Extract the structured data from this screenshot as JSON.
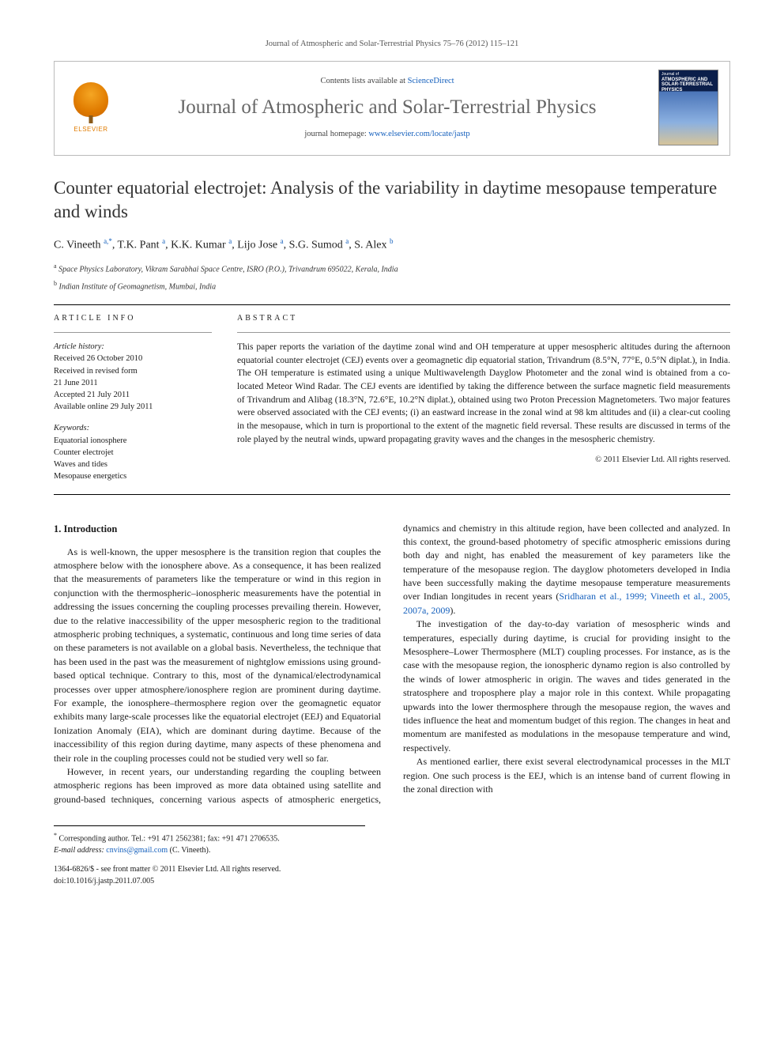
{
  "running_head": "Journal of Atmospheric and Solar-Terrestrial Physics 75–76 (2012) 115–121",
  "masthead": {
    "contents_prefix": "Contents lists available at ",
    "contents_link": "ScienceDirect",
    "journal_name": "Journal of Atmospheric and Solar-Terrestrial Physics",
    "homepage_prefix": "journal homepage: ",
    "homepage_link": "www.elsevier.com/locate/jastp",
    "publisher_word": "ELSEVIER",
    "cover_jrnl": "Journal of",
    "cover_title": "ATMOSPHERIC AND SOLAR-TERRESTRIAL PHYSICS"
  },
  "title": "Counter equatorial electrojet: Analysis of the variability in daytime mesopause temperature and winds",
  "authors_html": "C. Vineeth <span class='sup'>a,</span><span class='sup corr'>*</span>, T.K. Pant <span class='sup'>a</span>, K.K. Kumar <span class='sup'>a</span>, Lijo Jose <span class='sup'>a</span>, S.G. Sumod <span class='sup'>a</span>, S. Alex <span class='sup'>b</span>",
  "affiliations": [
    {
      "sup": "a",
      "text": "Space Physics Laboratory, Vikram Sarabhai Space Centre, ISRO (P.O.), Trivandrum 695022, Kerala, India"
    },
    {
      "sup": "b",
      "text": "Indian Institute of Geomagnetism, Mumbai, India"
    }
  ],
  "article_info": {
    "head": "ARTICLE INFO",
    "history_label": "Article history:",
    "history": [
      "Received 26 October 2010",
      "Received in revised form",
      "21 June 2011",
      "Accepted 21 July 2011",
      "Available online 29 July 2011"
    ],
    "keywords_label": "Keywords:",
    "keywords": [
      "Equatorial ionosphere",
      "Counter electrojet",
      "Waves and tides",
      "Mesopause energetics"
    ]
  },
  "abstract": {
    "head": "ABSTRACT",
    "text": "This paper reports the variation of the daytime zonal wind and OH temperature at upper mesospheric altitudes during the afternoon equatorial counter electrojet (CEJ) events over a geomagnetic dip equatorial station, Trivandrum (8.5°N, 77°E, 0.5°N diplat.), in India. The OH temperature is estimated using a unique Multiwavelength Dayglow Photometer and the zonal wind is obtained from a co-located Meteor Wind Radar. The CEJ events are identified by taking the difference between the surface magnetic field measurements of Trivandrum and Alibag (18.3°N, 72.6°E, 10.2°N diplat.), obtained using two Proton Precession Magnetometers. Two major features were observed associated with the CEJ events; (i) an eastward increase in the zonal wind at 98 km altitudes and (ii) a clear-cut cooling in the mesopause, which in turn is proportional to the extent of the magnetic field reversal. These results are discussed in terms of the role played by the neutral winds, upward propagating gravity waves and the changes in the mesospheric chemistry.",
    "copyright": "© 2011 Elsevier Ltd. All rights reserved."
  },
  "section1": {
    "heading": "1. Introduction",
    "p1": "As is well-known, the upper mesosphere is the transition region that couples the atmosphere below with the ionosphere above. As a consequence, it has been realized that the measurements of parameters like the temperature or wind in this region in conjunction with the thermospheric–ionospheric measurements have the potential in addressing the issues concerning the coupling processes prevailing therein. However, due to the relative inaccessibility of the upper mesospheric region to the traditional atmospheric probing techniques, a systematic, continuous and long time series of data on these parameters is not available on a global basis. Nevertheless, the technique that has been used in the past was the measurement of nightglow emissions using ground-based optical technique. Contrary to this, most of the dynamical/electrodynamical processes over upper atmosphere/ionosphere region are prominent during daytime. For example, the ionosphere–thermosphere region over the geomagnetic equator exhibits many large-scale processes like the equatorial electrojet (EEJ) and Equatorial Ionization Anomaly (EIA), which are dominant during daytime. Because of the inaccessibility of this region during daytime, many aspects of these phenomena and their role in the coupling processes could not be studied very well so far.",
    "p2_pre": "However, in recent years, our understanding regarding the coupling between atmospheric regions has been improved as more data obtained using satellite and ground-based techniques, concerning various aspects of atmospheric energetics, dynamics and chemistry in this altitude region, have been collected and analyzed. In this context, the ground-based photometry of specific atmospheric emissions during both day and night, has enabled the measurement of key parameters like the temperature of the mesopause region. The dayglow photometers developed in India have been successfully making the daytime mesopause temperature measurements over Indian longitudes in recent years (",
    "p2_link": "Sridharan et al., 1999; Vineeth et al., 2005, 2007a, 2009",
    "p2_post": ").",
    "p3": "The investigation of the day-to-day variation of mesospheric winds and temperatures, especially during daytime, is crucial for providing insight to the Mesosphere–Lower Thermosphere (MLT) coupling processes. For instance, as is the case with the mesopause region, the ionospheric dynamo region is also controlled by the winds of lower atmospheric in origin. The waves and tides generated in the stratosphere and troposphere play a major role in this context. While propagating upwards into the lower thermosphere through the mesopause region, the waves and tides influence the heat and momentum budget of this region. The changes in heat and momentum are manifested as modulations in the mesopause temperature and wind, respectively.",
    "p4": "As mentioned earlier, there exist several electrodynamical processes in the MLT region. One such process is the EEJ, which is an intense band of current flowing in the zonal direction with"
  },
  "footer": {
    "corr_label": "Corresponding author. Tel.: +91 471 2562381; fax: +91 471 2706535.",
    "email_label": "E-mail address:",
    "email": "cnvins@gmail.com",
    "email_who": "(C. Vineeth).",
    "issn_line": "1364-6826/$ - see front matter © 2011 Elsevier Ltd. All rights reserved.",
    "doi": "doi:10.1016/j.jastp.2011.07.005"
  },
  "colors": {
    "link": "#1560bd",
    "accent_orange": "#e07b00",
    "text": "#1a1a1a",
    "muted": "#555555"
  },
  "typography": {
    "body_pt": 12,
    "title_pt": 23,
    "journal_name_pt": 25,
    "abstract_pt": 11.5,
    "info_pt": 10.5,
    "footer_pt": 10
  }
}
